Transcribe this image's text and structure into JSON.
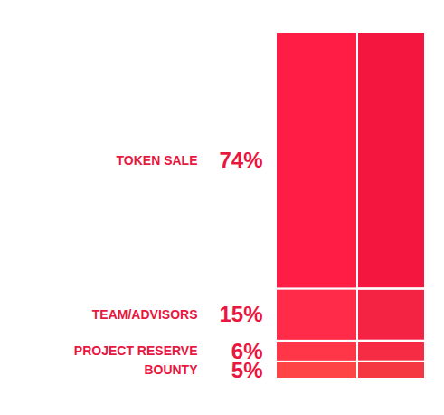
{
  "chart_data": {
    "type": "bar",
    "stacked": true,
    "categories": [
      "TOKEN SALE",
      "TEAM/ADVISORS",
      "PROJECT RESERVE",
      "BOUNTY"
    ],
    "values": [
      74,
      15,
      6,
      5
    ],
    "value_labels": [
      "74%",
      "15%",
      "6%",
      "5%"
    ],
    "data_labels": true,
    "tick_labels": false,
    "ylim": [
      0,
      100
    ],
    "colors": [
      "#ff1c45",
      "#ff2b48",
      "#ff3648",
      "#ff4446"
    ]
  }
}
